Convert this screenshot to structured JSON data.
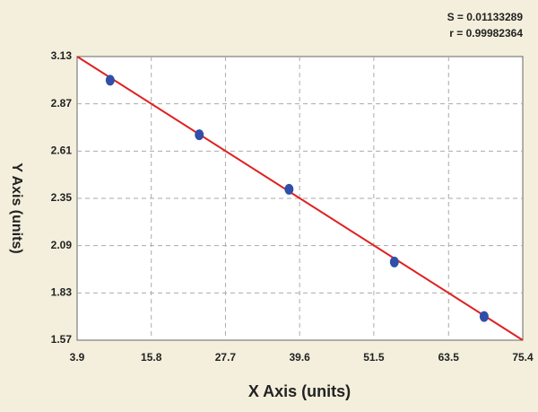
{
  "chart_data": {
    "type": "scatter",
    "annotations": [
      "S = 0.01133289",
      "r = 0.99982364"
    ],
    "x_label": "X Axis (units)",
    "y_label": "Y Axis (units)",
    "xlim": [
      3.9,
      75.4
    ],
    "xticks": [
      3.9,
      15.8,
      27.7,
      39.6,
      51.5,
      63.5,
      75.4
    ],
    "ylim": [
      1.57,
      3.13
    ],
    "yticks": [
      1.57,
      1.83,
      2.09,
      2.35,
      2.61,
      2.87,
      3.13
    ],
    "grid": true,
    "points": {
      "color": "#2f4fa8",
      "x": [
        9.2,
        23.5,
        37.9,
        54.8,
        69.2
      ],
      "values": [
        3.0,
        2.7,
        2.4,
        2.0,
        1.7
      ]
    },
    "fit": {
      "color": "#e02020",
      "x": [
        3.9,
        75.4
      ],
      "values": [
        3.13,
        1.57
      ]
    }
  }
}
